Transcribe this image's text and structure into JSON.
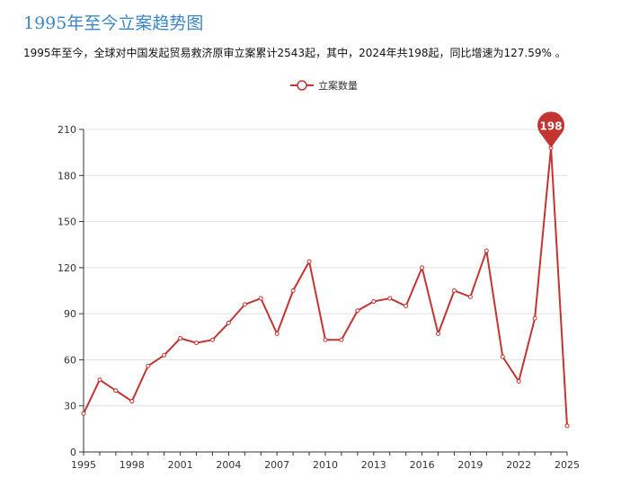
{
  "page": {
    "title": "1995年至今立案趋势图",
    "summary": "1995年至今，全球对中国发起贸易救济原审立案累计2543起，其中，2024年共198起，同比增速为127.59% 。"
  },
  "chart_data": {
    "type": "line",
    "title": "1995年至今立案趋势图",
    "x": [
      1995,
      1996,
      1997,
      1998,
      1999,
      2000,
      2001,
      2002,
      2003,
      2004,
      2005,
      2006,
      2007,
      2008,
      2009,
      2010,
      2011,
      2012,
      2013,
      2014,
      2015,
      2016,
      2017,
      2018,
      2019,
      2020,
      2021,
      2022,
      2023,
      2024,
      2025
    ],
    "series": [
      {
        "name": "立案数量",
        "color": "#c23531",
        "values": [
          25,
          47,
          40,
          33,
          56,
          63,
          74,
          71,
          73,
          84,
          96,
          100,
          77,
          105,
          124,
          73,
          73,
          92,
          98,
          100,
          95,
          120,
          77,
          105,
          101,
          131,
          62,
          46,
          87,
          198,
          17
        ]
      }
    ],
    "xticks": [
      "1995",
      "1998",
      "2001",
      "2004",
      "2007",
      "2010",
      "2013",
      "2016",
      "2019",
      "2022",
      "2025"
    ],
    "yticks": [
      "0",
      "30",
      "60",
      "90",
      "120",
      "150",
      "180",
      "210"
    ],
    "ylim": [
      0,
      210
    ],
    "grid": true,
    "legend_position": "top-center",
    "max_marker": {
      "x": 2024,
      "label": "198"
    }
  }
}
